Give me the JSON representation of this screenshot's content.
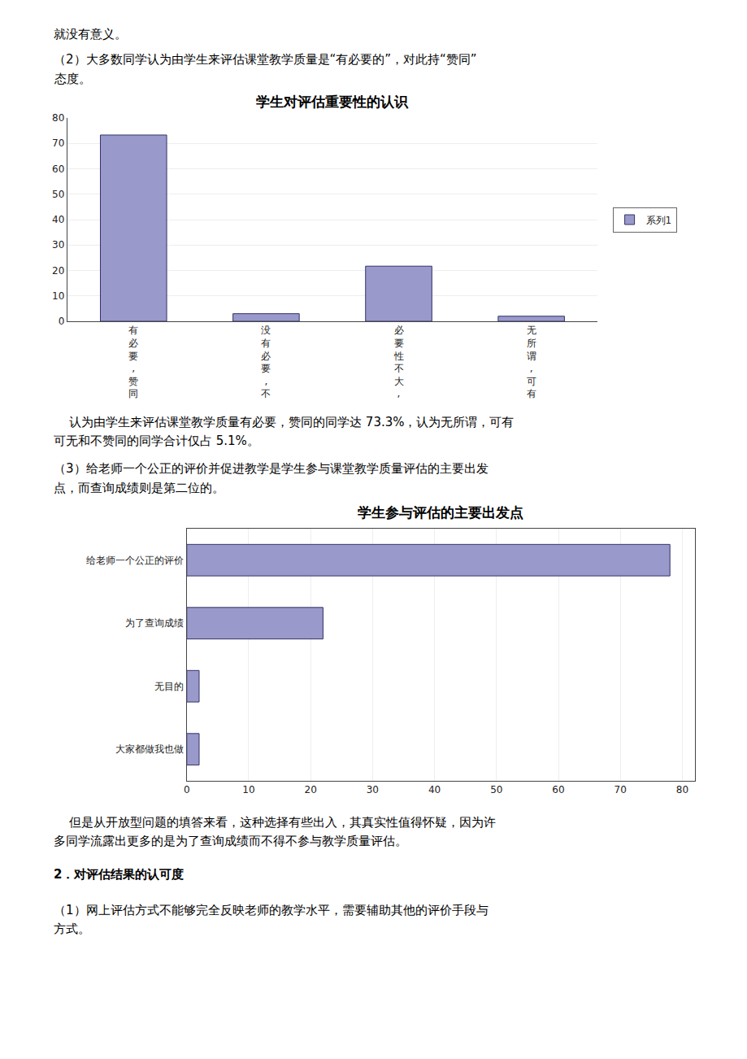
{
  "chart_data": [
    {
      "type": "bar",
      "title": "学生对评估重要性的认识",
      "categories": [
        "有\n必\n要\n,\n赞\n同",
        "没\n有\n必\n要\n,\n不",
        "必\n要\n性\n不\n大\n,",
        "无\n所\n谓\n,\n可\n有"
      ],
      "series": [
        {
          "name": "系列1",
          "color": "#9999cc",
          "values": [
            73.3,
            3.0,
            21.7,
            2.0
          ]
        }
      ],
      "ylim": [
        0,
        80
      ],
      "yticks": [
        0,
        10,
        20,
        30,
        40,
        50,
        60,
        70,
        80
      ],
      "grid": true,
      "legend": "right",
      "annotations": [
        "就没有意义。",
        "（2）大多数同学认为由学生来评估课堂教学质量是“有必要的”，对此持“赞同”",
        "态度。",
        "    认为由学生来评估课堂教学质量有必要，赞同的同学达 73.3%，认为无所谓，可有",
        "可无和不赞同的同学合计仅占 5.1%。"
      ]
    },
    {
      "type": "bar",
      "orientation": "horizontal",
      "title": "学生参与评估的主要出发点",
      "categories": [
        "给老师一个公正的评价",
        "为了查询成绩",
        "无目的",
        "大家都做我也做"
      ],
      "values": [
        78,
        22,
        2,
        2
      ],
      "color": "#9999cc",
      "xlim": [
        0,
        82
      ],
      "xticks": [
        0,
        10,
        20,
        30,
        40,
        50,
        60,
        70,
        80
      ],
      "grid": true,
      "annotations": [
        "（3）给老师一个公正的评价并促进教学是学生参与课堂教学质量评估的主要出发",
        "点，而查询成绩则是第二位的。",
        "    但是从开放型问题的填答来看，这种选择有些出入，其真实性值得怀疑，因为许",
        "多同学流露出更多的是为了查询成绩而不得不参与教学质量评估。",
        "2．对评估结果的认可度",
        "（1）网上评估方式不能够完全反映老师的教学水平，需要辅助其他的评价手段与",
        "方式。"
      ]
    }
  ]
}
